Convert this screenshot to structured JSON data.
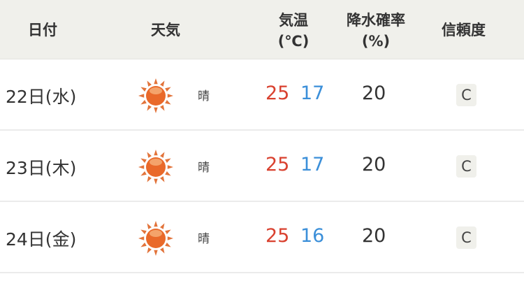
{
  "header": {
    "date": "日付",
    "weather": "天気",
    "temp_line1": "気温",
    "temp_line2": "(℃)",
    "precip_line1": "降水確率",
    "precip_line2": "(%)",
    "reliability": "信頼度"
  },
  "colors": {
    "high": "#d9412f",
    "low": "#3b8fd9",
    "header_bg": "#f0f0eb"
  },
  "rows": [
    {
      "date": "22日(水)",
      "icon": "sun-icon",
      "weather": "晴",
      "high": "25",
      "low": "17",
      "precip": "20",
      "reliability": "C"
    },
    {
      "date": "23日(木)",
      "icon": "sun-icon",
      "weather": "晴",
      "high": "25",
      "low": "17",
      "precip": "20",
      "reliability": "C"
    },
    {
      "date": "24日(金)",
      "icon": "sun-icon",
      "weather": "晴",
      "high": "25",
      "low": "16",
      "precip": "20",
      "reliability": "C"
    }
  ]
}
